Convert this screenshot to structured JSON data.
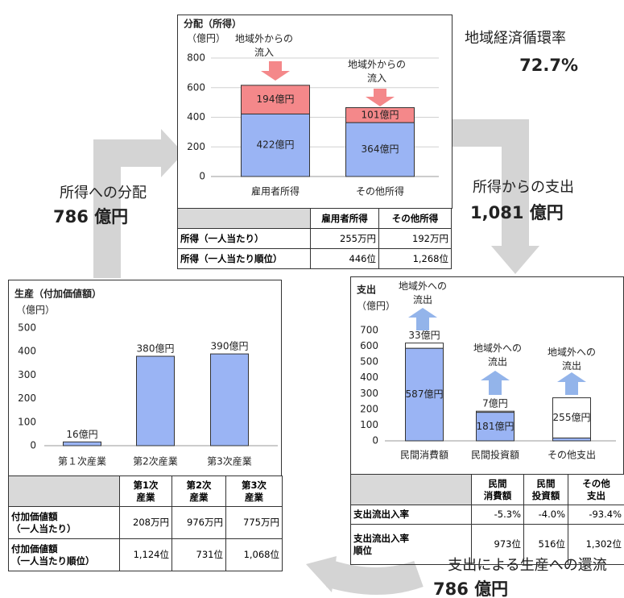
{
  "chart_data": [
    {
      "type": "bar",
      "stacked": true,
      "title": "分配（所得）",
      "y_label": "（億円）",
      "categories": [
        "雇用者所得",
        "その他所得"
      ],
      "series": [
        {
          "color": "#9ab4f4",
          "values": [
            422,
            364
          ],
          "value_labels": [
            "422億円",
            "364億円"
          ]
        },
        {
          "color": "#f4888a",
          "values": [
            194,
            101
          ],
          "value_labels": [
            "194億円",
            "101億円"
          ]
        }
      ],
      "ylim": [
        0,
        800
      ],
      "yticks": [
        0,
        200,
        400,
        600,
        800
      ],
      "grid": true,
      "annotations": [
        "地域外からの\n流入",
        "地域外からの\n流入"
      ],
      "annotation_color": "#f4888a"
    },
    {
      "type": "bar",
      "stacked": true,
      "title": "支出",
      "y_label": "（億円）",
      "categories": [
        "民間消費額",
        "民間投資額",
        "その他支出"
      ],
      "series": [
        {
          "color": "#9ab4f4",
          "values": [
            587,
            181,
            18
          ],
          "value_labels": [
            "587億円",
            "181億円",
            "18億円"
          ]
        },
        {
          "color": "#ffffff",
          "values": [
            33,
            7,
            255
          ],
          "value_labels": [
            "33億円",
            "7億円",
            "255億円"
          ]
        }
      ],
      "ylim": [
        0,
        700
      ],
      "yticks": [
        0,
        100,
        200,
        300,
        400,
        500,
        600,
        700
      ],
      "grid": false,
      "annotations": [
        "地域外への\n流出",
        "地域外への\n流出",
        "地域外への\n流出"
      ],
      "annotation_color": "#93b4ea"
    },
    {
      "type": "bar",
      "stacked": false,
      "title": "生産（付加価値額）",
      "y_label": "（億円）",
      "categories": [
        "第１次産業",
        "第2次産業",
        "第3次産業"
      ],
      "series": [
        {
          "color": "#9ab4f4",
          "values": [
            16,
            380,
            390
          ],
          "value_labels": [
            "16億円",
            "380億円",
            "390億円"
          ]
        }
      ],
      "ylim": [
        0,
        500
      ],
      "yticks": [
        0,
        100,
        200,
        300,
        400,
        500
      ],
      "grid": false
    }
  ],
  "tables": [
    {
      "headers": [
        "雇用者所得",
        "その他所得"
      ],
      "rows": [
        {
          "label": "所得（一人当たり）",
          "values": [
            "255万円",
            "192万円"
          ]
        },
        {
          "label": "所得（一人当たり順位）",
          "values": [
            "446位",
            "1,268位"
          ]
        }
      ]
    },
    {
      "headers": [
        "民間\n消費額",
        "民間\n投資額",
        "その他\n支出"
      ],
      "rows": [
        {
          "label": "支出流出入率",
          "values": [
            "-5.3%",
            "-4.0%",
            "-93.4%"
          ]
        },
        {
          "label": "支出流出入率\n順位",
          "values": [
            "973位",
            "516位",
            "1,302位"
          ]
        }
      ]
    },
    {
      "headers": [
        "第1次\n産業",
        "第2次\n産業",
        "第3次\n産業"
      ],
      "rows": [
        {
          "label": "付加価値額\n（一人当たり）",
          "values": [
            "208万円",
            "976万円",
            "775万円"
          ]
        },
        {
          "label": "付加価値額\n（一人当たり順位）",
          "values": [
            "1,124位",
            "731位",
            "1,068位"
          ]
        }
      ]
    }
  ],
  "flows": {
    "circulation_rate": {
      "label": "地域経済循環率",
      "value": "72.7%"
    },
    "income_to_expenditure": {
      "label": "所得からの支出",
      "value": "1,081 億円"
    },
    "production_to_income": {
      "label": "所得への分配",
      "value": "786 億円"
    },
    "expenditure_to_production": {
      "label": "支出による生産への還流",
      "value": "786 億円"
    }
  }
}
